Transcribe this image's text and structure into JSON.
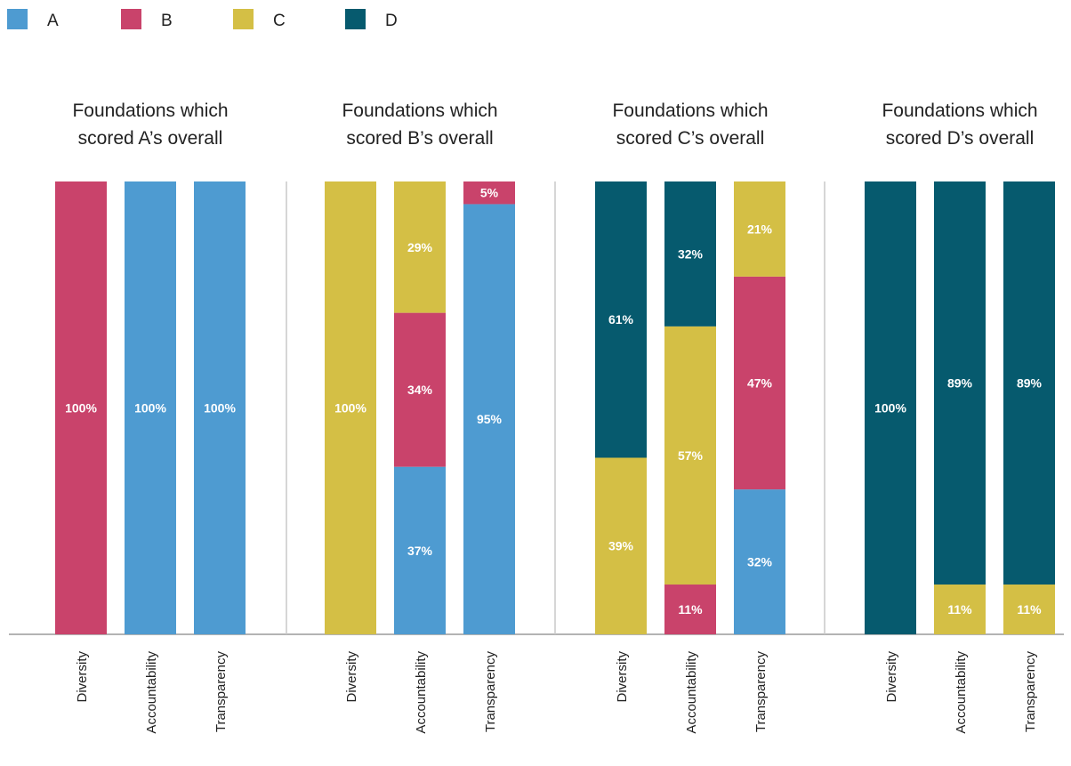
{
  "legend": [
    {
      "label": "A",
      "color": "#4e9bd1"
    },
    {
      "label": "B",
      "color": "#c9436b"
    },
    {
      "label": "C",
      "color": "#d4bf45"
    },
    {
      "label": "D",
      "color": "#065a6e"
    }
  ],
  "chart_data": [
    {
      "type": "bar",
      "stacked": true,
      "title": "Foundations which scored A’s overall",
      "categories": [
        "Diversity",
        "Accountability",
        "Transparency"
      ],
      "series": [
        {
          "name": "A",
          "values": [
            0,
            100,
            100
          ]
        },
        {
          "name": "B",
          "values": [
            100,
            0,
            0
          ]
        },
        {
          "name": "C",
          "values": [
            0,
            0,
            0
          ]
        },
        {
          "name": "D",
          "values": [
            0,
            0,
            0
          ]
        }
      ],
      "ylim": [
        0,
        100
      ],
      "legend_position": "top-left",
      "grid": false
    },
    {
      "type": "bar",
      "stacked": true,
      "title": "Foundations which scored B’s overall",
      "categories": [
        "Diversity",
        "Accountability",
        "Transparency"
      ],
      "series": [
        {
          "name": "A",
          "values": [
            0,
            37,
            95
          ]
        },
        {
          "name": "B",
          "values": [
            0,
            34,
            5
          ]
        },
        {
          "name": "C",
          "values": [
            100,
            29,
            0
          ]
        },
        {
          "name": "D",
          "values": [
            0,
            0,
            0
          ]
        }
      ],
      "ylim": [
        0,
        100
      ],
      "legend_position": "top-left",
      "grid": false
    },
    {
      "type": "bar",
      "stacked": true,
      "title": "Foundations which scored C’s overall",
      "categories": [
        "Diversity",
        "Accountability",
        "Transparency"
      ],
      "series": [
        {
          "name": "A",
          "values": [
            0,
            0,
            32
          ]
        },
        {
          "name": "B",
          "values": [
            0,
            11,
            47
          ]
        },
        {
          "name": "C",
          "values": [
            39,
            57,
            21
          ]
        },
        {
          "name": "D",
          "values": [
            61,
            32,
            0
          ]
        }
      ],
      "ylim": [
        0,
        100
      ],
      "legend_position": "top-left",
      "grid": false
    },
    {
      "type": "bar",
      "stacked": true,
      "title": "Foundations which scored D’s overall",
      "categories": [
        "Diversity",
        "Accountability",
        "Transparency"
      ],
      "series": [
        {
          "name": "A",
          "values": [
            0,
            0,
            0
          ]
        },
        {
          "name": "B",
          "values": [
            0,
            0,
            0
          ]
        },
        {
          "name": "C",
          "values": [
            0,
            11,
            11
          ]
        },
        {
          "name": "D",
          "values": [
            100,
            89,
            89
          ]
        }
      ],
      "ylim": [
        0,
        100
      ],
      "legend_position": "top-left",
      "grid": false
    }
  ]
}
